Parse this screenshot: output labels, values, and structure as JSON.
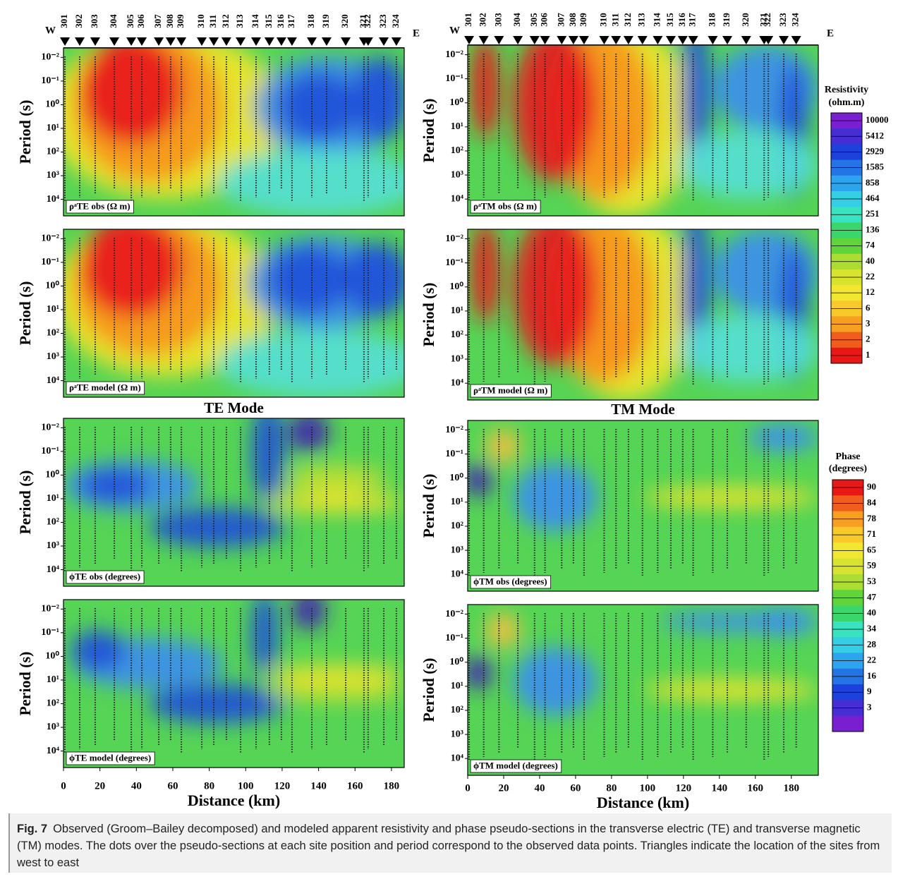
{
  "sites": {
    "labels": [
      "301",
      "302",
      "303",
      "304",
      "305",
      "306",
      "307",
      "308",
      "309",
      "310",
      "311",
      "312",
      "313",
      "314",
      "315",
      "316",
      "317",
      "318",
      "319",
      "320",
      "321",
      "322",
      "323",
      "324"
    ],
    "distance_km": [
      0.8,
      8.9,
      17.4,
      27.9,
      37.2,
      43,
      52.3,
      58.8,
      64.7,
      75.9,
      82.5,
      89.4,
      97.2,
      105.7,
      113,
      119.6,
      125.4,
      136.3,
      144.4,
      154.9,
      164.9,
      167.2,
      175.8,
      182.7
    ]
  },
  "west_label": "W",
  "east_label": "E",
  "columns": [
    {
      "mode_title": "TE Mode",
      "xlim": [
        0,
        187
      ],
      "xticks": [
        0,
        20,
        40,
        60,
        80,
        100,
        120,
        140,
        160,
        180
      ],
      "xlabel": "Distance (km)",
      "panels": [
        {
          "label": "ρᵃTE obs (Ω m)",
          "ylabel": "Period (s)",
          "ylog": true,
          "ylim": [
            0.004,
            50000
          ],
          "yticks": [
            {
              "value": 0.01,
              "label": "10⁻²"
            },
            {
              "value": 0.1,
              "label": "10⁻¹"
            },
            {
              "value": 1,
              "label": "10⁰"
            },
            {
              "value": 10,
              "label": "10¹"
            },
            {
              "value": 100,
              "label": "10²"
            },
            {
              "value": 1000,
              "label": "10³"
            },
            {
              "value": 10000,
              "label": "10⁴"
            }
          ]
        },
        {
          "label": "ρᵃTE model (Ω m)",
          "ylabel": "Period (s)",
          "ylog": true,
          "ylim": [
            0.004,
            50000
          ],
          "yticks": [
            {
              "value": 0.01,
              "label": "10⁻²"
            },
            {
              "value": 0.1,
              "label": "10⁻¹"
            },
            {
              "value": 1,
              "label": "10⁰"
            },
            {
              "value": 10,
              "label": "10¹"
            },
            {
              "value": 100,
              "label": "10²"
            },
            {
              "value": 1000,
              "label": "10³"
            },
            {
              "value": 10000,
              "label": "10⁴"
            }
          ]
        },
        {
          "label": "ϕTE obs (degrees)",
          "ylabel": "Period (s)",
          "ylog": true,
          "ylim": [
            0.004,
            50000
          ],
          "yticks": [
            {
              "value": 0.01,
              "label": "10⁻²"
            },
            {
              "value": 0.1,
              "label": "10⁻¹"
            },
            {
              "value": 1,
              "label": "10⁰"
            },
            {
              "value": 10,
              "label": "10¹"
            },
            {
              "value": 100,
              "label": "10²"
            },
            {
              "value": 1000,
              "label": "10³"
            },
            {
              "value": 10000,
              "label": "10⁴"
            }
          ]
        },
        {
          "label": "ϕTE model (degrees)",
          "ylabel": "Period (s)",
          "ylog": true,
          "ylim": [
            0.004,
            50000
          ],
          "yticks": [
            {
              "value": 0.01,
              "label": "10⁻²"
            },
            {
              "value": 0.1,
              "label": "10⁻¹"
            },
            {
              "value": 1,
              "label": "10⁰"
            },
            {
              "value": 10,
              "label": "10¹"
            },
            {
              "value": 100,
              "label": "10²"
            },
            {
              "value": 1000,
              "label": "10³"
            },
            {
              "value": 10000,
              "label": "10⁴"
            }
          ]
        }
      ]
    },
    {
      "mode_title": "TM Mode",
      "xlim": [
        0,
        195
      ],
      "xticks": [
        0,
        20,
        40,
        60,
        80,
        100,
        120,
        140,
        160,
        180
      ],
      "xlabel": "Distance (km)",
      "panels": [
        {
          "label": "ρᵃTM obs (Ω m)",
          "ylabel": "Period (s)",
          "ylog": true,
          "ylim": [
            0.004,
            50000
          ],
          "yticks": [
            {
              "value": 0.01,
              "label": "10⁻²"
            },
            {
              "value": 0.1,
              "label": "10⁻¹"
            },
            {
              "value": 1,
              "label": "10⁰"
            },
            {
              "value": 10,
              "label": "10¹"
            },
            {
              "value": 100,
              "label": "10²"
            },
            {
              "value": 1000,
              "label": "10³"
            },
            {
              "value": 10000,
              "label": "10⁴"
            }
          ]
        },
        {
          "label": "ρᵃTM model (Ω m)",
          "ylabel": "Period (s)",
          "ylog": true,
          "ylim": [
            0.004,
            50000
          ],
          "yticks": [
            {
              "value": 0.01,
              "label": "10⁻²"
            },
            {
              "value": 0.1,
              "label": "10⁻¹"
            },
            {
              "value": 1,
              "label": "10⁰"
            },
            {
              "value": 10,
              "label": "10¹"
            },
            {
              "value": 100,
              "label": "10²"
            },
            {
              "value": 1000,
              "label": "10³"
            },
            {
              "value": 10000,
              "label": "10⁴"
            }
          ]
        },
        {
          "label": "ϕTM obs (degrees)",
          "ylabel": "Period (s)",
          "ylog": true,
          "ylim": [
            0.004,
            50000
          ],
          "yticks": [
            {
              "value": 0.01,
              "label": "10⁻²"
            },
            {
              "value": 0.1,
              "label": "10⁻¹"
            },
            {
              "value": 1,
              "label": "10⁰"
            },
            {
              "value": 10,
              "label": "10¹"
            },
            {
              "value": 100,
              "label": "10²"
            },
            {
              "value": 1000,
              "label": "10³"
            },
            {
              "value": 10000,
              "label": "10⁴"
            }
          ]
        },
        {
          "label": "ϕTM model (degrees)",
          "ylabel": "Period (s)",
          "ylog": true,
          "ylim": [
            0.004,
            50000
          ],
          "yticks": [
            {
              "value": 0.01,
              "label": "10⁻²"
            },
            {
              "value": 0.1,
              "label": "10⁻¹"
            },
            {
              "value": 1,
              "label": "10⁰"
            },
            {
              "value": 10,
              "label": "10¹"
            },
            {
              "value": 100,
              "label": "10²"
            },
            {
              "value": 1000,
              "label": "10³"
            },
            {
              "value": 10000,
              "label": "10⁴"
            }
          ]
        }
      ]
    }
  ],
  "colorbars": [
    {
      "title": "Resistivity",
      "unit": "(ohm.m)",
      "ticks": [
        10000,
        5412,
        2929,
        1585,
        858,
        464,
        251,
        136,
        74,
        40,
        22,
        12,
        6,
        3,
        2,
        1
      ]
    },
    {
      "title": "Phase",
      "unit": "(degrees)",
      "ticks": [
        90,
        84,
        78,
        71,
        65,
        59,
        53,
        47,
        40,
        34,
        28,
        22,
        16,
        9,
        3
      ]
    }
  ],
  "caption": {
    "label": "Fig. 7",
    "text": "Observed (Groom–Bailey decomposed) and modeled apparent resistivity and phase pseudo-sections in the transverse electric (TE) and transverse magnetic (TM) modes. The dots over the pseudo-sections at each site position and period correspond to the observed data points. Triangles indicate the location of the sites from west to east"
  }
}
